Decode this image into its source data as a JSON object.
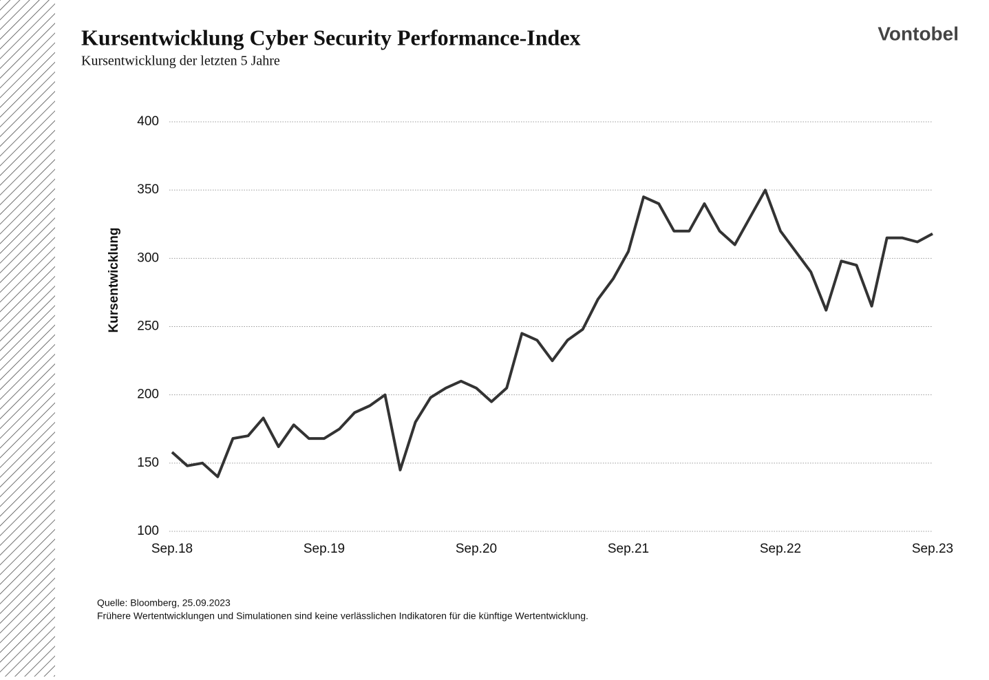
{
  "header": {
    "logo": "Vontobel"
  },
  "chart_data": {
    "type": "line",
    "title": "Kursentwicklung Cyber Security Performance-Index",
    "subtitle": "Kursentwicklung der letzten 5 Jahre",
    "y_label": "Kursentwicklung",
    "categories": [
      "Sep.18",
      null,
      null,
      null,
      null,
      null,
      null,
      null,
      null,
      null,
      "Sep.19",
      null,
      null,
      null,
      null,
      null,
      null,
      null,
      null,
      null,
      "Sep.20",
      null,
      null,
      null,
      null,
      null,
      null,
      null,
      null,
      null,
      "Sep.21",
      null,
      null,
      null,
      null,
      null,
      null,
      null,
      null,
      null,
      "Sep.22",
      null,
      null,
      null,
      null,
      null,
      null,
      null,
      null,
      null,
      "Sep.23"
    ],
    "series": [
      {
        "name": "Cyber Security Performance-Index",
        "color": "#333333",
        "values": [
          158,
          148,
          150,
          140,
          168,
          170,
          183,
          162,
          178,
          168,
          168,
          175,
          187,
          192,
          200,
          145,
          180,
          198,
          205,
          210,
          205,
          195,
          205,
          245,
          240,
          225,
          240,
          248,
          270,
          285,
          305,
          345,
          340,
          320,
          320,
          340,
          320,
          310,
          330,
          350,
          320,
          305,
          290,
          262,
          298,
          295,
          265,
          315,
          315,
          312,
          318
        ]
      }
    ],
    "ylim": [
      100,
      400
    ],
    "yticks": [
      100,
      150,
      200,
      250,
      300,
      350,
      400
    ],
    "grid": true
  },
  "footer": {
    "source": "Quelle: Bloomberg, 25.09.2023",
    "disclaimer": "Frühere Wertentwicklungen und Simulationen sind keine verlässlichen Indikatoren für die künftige Wertentwicklung."
  }
}
